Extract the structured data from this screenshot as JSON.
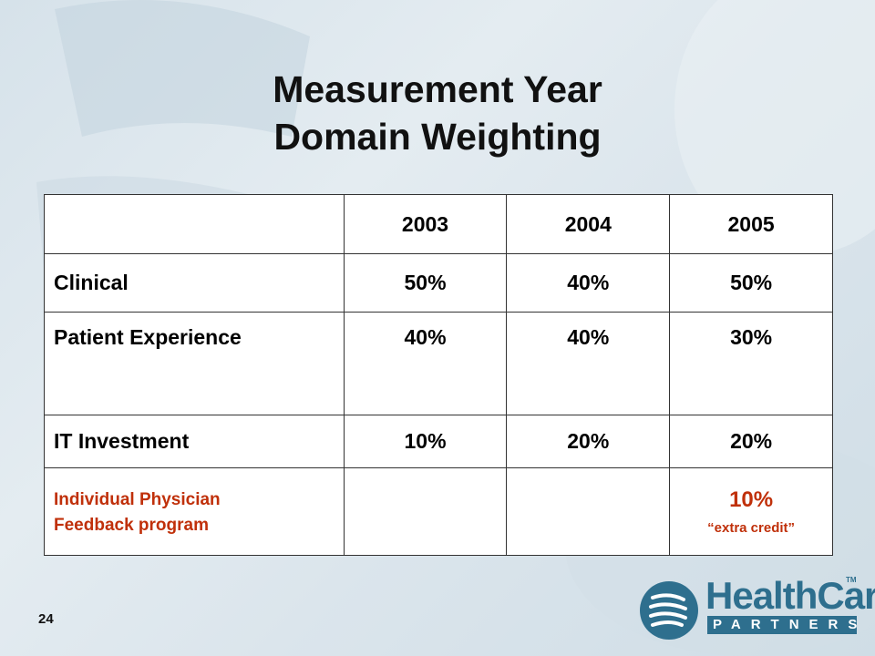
{
  "title": {
    "line1": "Measurement Year",
    "line2": "Domain Weighting"
  },
  "table": {
    "header": [
      "",
      "2003",
      "2004",
      "2005"
    ],
    "rows": [
      {
        "label": "Clinical",
        "values": [
          "50%",
          "40%",
          "50%"
        ]
      },
      {
        "label": "Patient Experience",
        "values": [
          "40%",
          "40%",
          "30%"
        ]
      },
      {
        "label": "IT Investment",
        "values": [
          "10%",
          "20%",
          "20%"
        ]
      }
    ],
    "special_row": {
      "label_line1": "Individual Physician",
      "label_line2": "Feedback program",
      "values": [
        "",
        "",
        "10%"
      ],
      "note": "“extra credit”"
    }
  },
  "page_number": "24",
  "logo": {
    "word": "HealthCare",
    "sub": "PARTNERS",
    "tm": "TM",
    "icon": "healthcare-partners-logo-icon"
  },
  "colors": {
    "accent_red": "#c0300a",
    "logo_blue": "#2e6f8e"
  }
}
